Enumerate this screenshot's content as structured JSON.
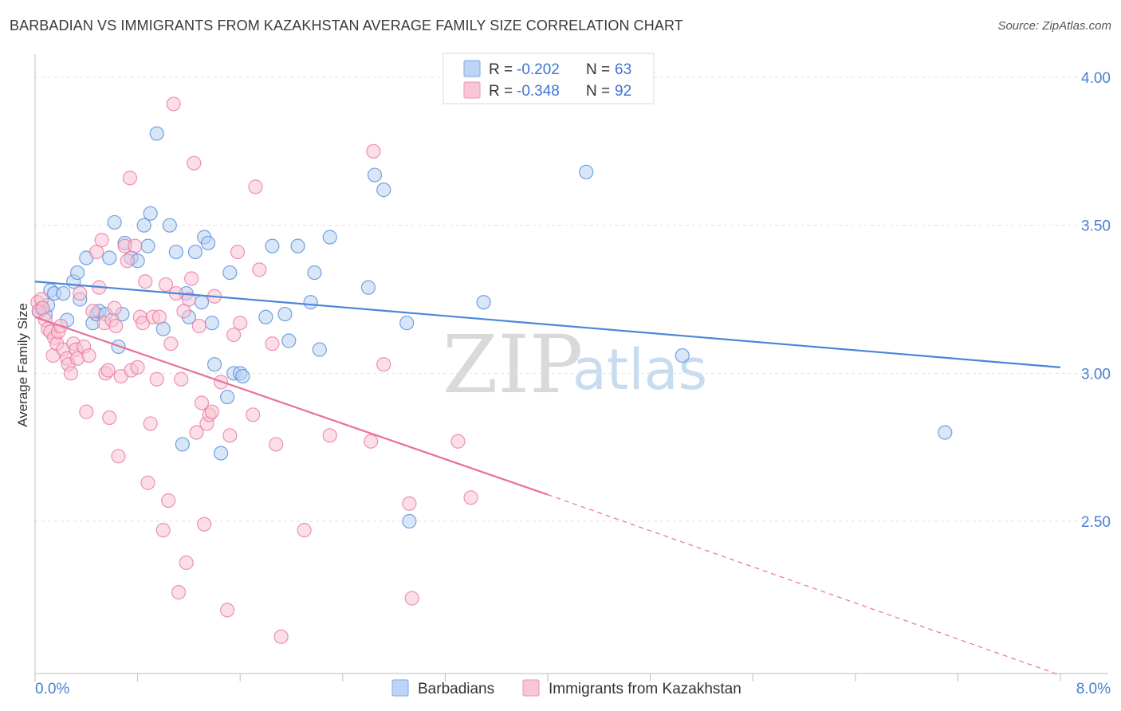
{
  "title": "BARBADIAN VS IMMIGRANTS FROM KAZAKHSTAN AVERAGE FAMILY SIZE CORRELATION CHART",
  "source": "Source: ZipAtlas.com",
  "watermark": {
    "zip": "ZIP",
    "atlas": "atlas"
  },
  "legend": {
    "rows": [
      {
        "r_label": "R = ",
        "r_value": "-0.202",
        "n_label": "N = ",
        "n_value": "63",
        "color": "#8ab4ea",
        "fill": "#bcd4f5"
      },
      {
        "r_label": "R = ",
        "r_value": "-0.348",
        "n_label": "N = ",
        "n_value": "92",
        "color": "#f0a0bd",
        "fill": "#f8c6d6"
      }
    ]
  },
  "bottom_legend": [
    "Barbadians",
    "Immigrants from Kazakhstan"
  ],
  "chart_data": {
    "type": "scatter",
    "title": "BARBADIAN VS IMMIGRANTS FROM KAZAKHSTAN AVERAGE FAMILY SIZE CORRELATION CHART",
    "xlabel": "",
    "ylabel": "Average Family Size",
    "xlim": [
      0.0,
      8.0
    ],
    "ylim": [
      2.0,
      4.08
    ],
    "x_tick_labels": [
      "0.0%",
      "8.0%"
    ],
    "y_ticks": [
      2.5,
      3.0,
      3.5,
      4.0
    ],
    "y_tick_labels": [
      "2.50",
      "3.00",
      "3.50",
      "4.00"
    ],
    "grid": "horizontal dashed",
    "legend_placement": "top-center",
    "series": [
      {
        "name": "Barbadians",
        "color": "#4a86d8",
        "fill": "#b8d1f3",
        "trend": {
          "x0": 0.0,
          "y0": 3.31,
          "x1": 8.0,
          "y1": 3.02
        },
        "points": [
          [
            0.05,
            3.22
          ],
          [
            0.08,
            3.2
          ],
          [
            0.1,
            3.23
          ],
          [
            0.12,
            3.28
          ],
          [
            0.15,
            3.27
          ],
          [
            0.22,
            3.27
          ],
          [
            0.25,
            3.18
          ],
          [
            0.3,
            3.31
          ],
          [
            0.33,
            3.34
          ],
          [
            0.35,
            3.25
          ],
          [
            0.4,
            3.39
          ],
          [
            0.45,
            3.17
          ],
          [
            0.48,
            3.2
          ],
          [
            0.5,
            3.21
          ],
          [
            0.55,
            3.2
          ],
          [
            0.58,
            3.39
          ],
          [
            0.62,
            3.51
          ],
          [
            0.65,
            3.09
          ],
          [
            0.68,
            3.2
          ],
          [
            0.7,
            3.44
          ],
          [
            0.75,
            3.39
          ],
          [
            0.8,
            3.38
          ],
          [
            0.85,
            3.5
          ],
          [
            0.88,
            3.43
          ],
          [
            0.9,
            3.54
          ],
          [
            0.95,
            3.81
          ],
          [
            1.0,
            3.15
          ],
          [
            1.05,
            3.5
          ],
          [
            1.1,
            3.41
          ],
          [
            1.15,
            2.76
          ],
          [
            1.18,
            3.27
          ],
          [
            1.2,
            3.19
          ],
          [
            1.25,
            3.41
          ],
          [
            1.3,
            3.24
          ],
          [
            1.32,
            3.46
          ],
          [
            1.35,
            3.44
          ],
          [
            1.38,
            3.17
          ],
          [
            1.4,
            3.03
          ],
          [
            1.45,
            2.73
          ],
          [
            1.5,
            2.92
          ],
          [
            1.52,
            3.34
          ],
          [
            1.55,
            3.0
          ],
          [
            1.6,
            3.0
          ],
          [
            1.62,
            2.99
          ],
          [
            1.8,
            3.19
          ],
          [
            1.85,
            3.43
          ],
          [
            1.95,
            3.2
          ],
          [
            1.98,
            3.11
          ],
          [
            2.05,
            3.43
          ],
          [
            2.15,
            3.24
          ],
          [
            2.18,
            3.34
          ],
          [
            2.22,
            3.08
          ],
          [
            2.3,
            3.46
          ],
          [
            2.6,
            3.29
          ],
          [
            2.65,
            3.67
          ],
          [
            2.72,
            3.62
          ],
          [
            2.9,
            3.17
          ],
          [
            2.92,
            2.5
          ],
          [
            3.5,
            3.24
          ],
          [
            4.3,
            3.68
          ],
          [
            5.05,
            3.06
          ],
          [
            7.1,
            2.8
          ],
          [
            0.03,
            3.21
          ]
        ]
      },
      {
        "name": "Immigrants from Kazakhstan",
        "color": "#e8719a",
        "fill": "#f7c3d4",
        "trend": {
          "x0": 0.0,
          "y0": 3.19,
          "x1": 4.0,
          "y1": 2.59,
          "dash_to": {
            "x": 8.0,
            "y": 1.98
          }
        },
        "points": [
          [
            0.02,
            3.24
          ],
          [
            0.03,
            3.21
          ],
          [
            0.05,
            3.25
          ],
          [
            0.06,
            3.22
          ],
          [
            0.08,
            3.18
          ],
          [
            0.1,
            3.15
          ],
          [
            0.12,
            3.14
          ],
          [
            0.14,
            3.06
          ],
          [
            0.15,
            3.12
          ],
          [
            0.17,
            3.1
          ],
          [
            0.18,
            3.14
          ],
          [
            0.2,
            3.16
          ],
          [
            0.22,
            3.08
          ],
          [
            0.25,
            3.05
          ],
          [
            0.26,
            3.03
          ],
          [
            0.28,
            3.0
          ],
          [
            0.3,
            3.1
          ],
          [
            0.32,
            3.08
          ],
          [
            0.33,
            3.05
          ],
          [
            0.35,
            3.27
          ],
          [
            0.38,
            3.09
          ],
          [
            0.4,
            2.87
          ],
          [
            0.42,
            3.06
          ],
          [
            0.45,
            3.21
          ],
          [
            0.48,
            3.41
          ],
          [
            0.5,
            3.29
          ],
          [
            0.52,
            3.45
          ],
          [
            0.54,
            3.17
          ],
          [
            0.55,
            3.0
          ],
          [
            0.57,
            3.01
          ],
          [
            0.58,
            2.85
          ],
          [
            0.6,
            3.18
          ],
          [
            0.62,
            3.22
          ],
          [
            0.63,
            3.16
          ],
          [
            0.65,
            2.72
          ],
          [
            0.67,
            2.99
          ],
          [
            0.7,
            3.43
          ],
          [
            0.72,
            3.38
          ],
          [
            0.74,
            3.66
          ],
          [
            0.75,
            3.01
          ],
          [
            0.78,
            3.43
          ],
          [
            0.8,
            3.02
          ],
          [
            0.82,
            3.19
          ],
          [
            0.84,
            3.17
          ],
          [
            0.86,
            3.31
          ],
          [
            0.88,
            2.63
          ],
          [
            0.9,
            2.83
          ],
          [
            0.92,
            3.19
          ],
          [
            0.95,
            2.98
          ],
          [
            0.97,
            3.19
          ],
          [
            1.0,
            2.47
          ],
          [
            1.02,
            3.3
          ],
          [
            1.04,
            2.57
          ],
          [
            1.06,
            3.1
          ],
          [
            1.08,
            3.91
          ],
          [
            1.1,
            3.27
          ],
          [
            1.12,
            2.26
          ],
          [
            1.14,
            2.98
          ],
          [
            1.16,
            3.21
          ],
          [
            1.18,
            2.36
          ],
          [
            1.2,
            3.25
          ],
          [
            1.22,
            3.32
          ],
          [
            1.24,
            3.71
          ],
          [
            1.26,
            2.8
          ],
          [
            1.28,
            3.16
          ],
          [
            1.3,
            2.9
          ],
          [
            1.32,
            2.49
          ],
          [
            1.34,
            2.83
          ],
          [
            1.36,
            2.86
          ],
          [
            1.38,
            2.87
          ],
          [
            1.4,
            3.26
          ],
          [
            1.45,
            2.97
          ],
          [
            1.5,
            2.2
          ],
          [
            1.52,
            2.79
          ],
          [
            1.55,
            3.13
          ],
          [
            1.58,
            3.41
          ],
          [
            1.6,
            3.17
          ],
          [
            1.7,
            2.86
          ],
          [
            1.72,
            3.63
          ],
          [
            1.75,
            3.35
          ],
          [
            1.85,
            3.1
          ],
          [
            1.88,
            2.76
          ],
          [
            1.92,
            2.11
          ],
          [
            2.1,
            2.47
          ],
          [
            2.3,
            2.79
          ],
          [
            2.62,
            2.77
          ],
          [
            2.64,
            3.75
          ],
          [
            2.72,
            3.03
          ],
          [
            2.92,
            2.56
          ],
          [
            2.94,
            2.24
          ],
          [
            3.3,
            2.77
          ],
          [
            3.4,
            2.58
          ]
        ]
      }
    ]
  }
}
